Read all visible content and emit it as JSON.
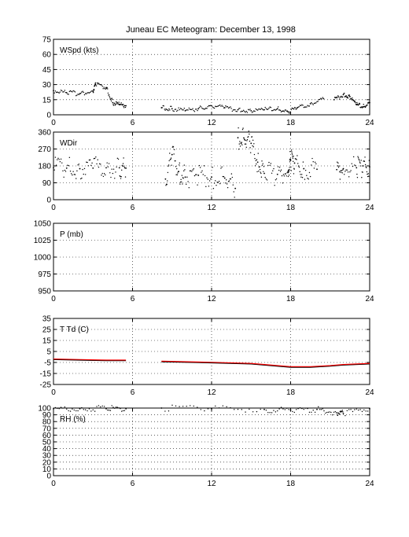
{
  "title": "Juneau EC Meteogram:  December 13, 1998",
  "chart_data": [
    {
      "type": "scatter",
      "label": "WSpd (kts)",
      "xlim": [
        0,
        24
      ],
      "xticks": [
        "0",
        "6",
        "12",
        "18",
        "24"
      ],
      "ylim": [
        0,
        75
      ],
      "yticks": [
        "0",
        "15",
        "30",
        "45",
        "60",
        "75"
      ],
      "grid": true,
      "series": [
        {
          "color": "#000000",
          "x": [
            0,
            1,
            2,
            3,
            3.2,
            4,
            4.5,
            5,
            5.5
          ],
          "y": [
            24,
            22,
            21,
            23,
            30,
            27,
            12,
            10,
            9
          ]
        },
        {
          "color": "#000000",
          "x": [
            8.2,
            9,
            10,
            11,
            12,
            13,
            14,
            15,
            16,
            17,
            17.8,
            18.5,
            19.5,
            20.5
          ],
          "y": [
            7,
            6,
            4,
            6,
            9,
            7,
            5,
            4,
            5,
            6,
            3,
            7,
            11,
            16
          ]
        },
        {
          "color": "#000000",
          "x": [
            21.3,
            22,
            22.5,
            23,
            23.5,
            24
          ],
          "y": [
            15,
            20,
            18,
            10,
            8,
            12
          ]
        }
      ]
    },
    {
      "type": "scatter",
      "label": "WDir",
      "xlim": [
        0,
        24
      ],
      "xticks": [
        "0",
        "6",
        "12",
        "18",
        "24"
      ],
      "ylim": [
        0,
        360
      ],
      "yticks": [
        "0",
        "90",
        "180",
        "270",
        "360"
      ],
      "grid": true,
      "series": [
        {
          "color": "#000000",
          "x": [
            0,
            1,
            2,
            3,
            4,
            5,
            5.5
          ],
          "y": [
            170,
            168,
            165,
            168,
            170,
            170,
            168
          ]
        },
        {
          "color": "#000000",
          "x": [
            8.5,
            9,
            9.5,
            10,
            11,
            12,
            13,
            13.8
          ],
          "y": [
            110,
            240,
            150,
            120,
            130,
            120,
            115,
            60
          ]
        },
        {
          "color": "#000000",
          "x": [
            14,
            14.5,
            15,
            15.5,
            16,
            17,
            17.8,
            18,
            18.3,
            19,
            20
          ],
          "y": [
            330,
            320,
            300,
            200,
            140,
            135,
            150,
            210,
            195,
            165,
            162
          ]
        },
        {
          "color": "#000000",
          "x": [
            21.5,
            22,
            23,
            23.5,
            24
          ],
          "y": [
            160,
            165,
            170,
            180,
            175
          ]
        }
      ]
    },
    {
      "type": "line",
      "label": "P (mb)",
      "xlim": [
        0,
        24
      ],
      "xticks": [
        "0",
        "6",
        "12",
        "18",
        "24"
      ],
      "ylim": [
        950,
        1050
      ],
      "yticks": [
        "950",
        "975",
        "1000",
        "1025",
        "1050"
      ],
      "grid": true,
      "series": []
    },
    {
      "type": "line",
      "label": "T Td (C)",
      "xlim": [
        0,
        24
      ],
      "xticks": [
        "0",
        "6",
        "12",
        "18",
        "24"
      ],
      "ylim": [
        -25,
        35
      ],
      "yticks": [
        "-25",
        "-15",
        "-5",
        "5",
        "15",
        "25",
        "35"
      ],
      "grid": true,
      "series": [
        {
          "color": "#ff0000",
          "x": [
            0,
            2,
            4,
            5.5
          ],
          "y": [
            -2,
            -2.5,
            -3,
            -3
          ]
        },
        {
          "color": "#ff0000",
          "x": [
            8.2,
            12,
            15,
            18,
            19.5,
            21,
            22,
            24
          ],
          "y": [
            -4,
            -5,
            -6,
            -9,
            -9,
            -8,
            -7,
            -6
          ]
        },
        {
          "color": "#000000",
          "x": [
            0,
            2,
            4,
            5.5
          ],
          "y": [
            -2.5,
            -3,
            -3.5,
            -3.5
          ]
        },
        {
          "color": "#000000",
          "x": [
            8.2,
            12,
            15,
            18,
            19.5,
            21,
            22,
            24
          ],
          "y": [
            -4.5,
            -5.5,
            -6.5,
            -9.5,
            -9.5,
            -8.5,
            -7.5,
            -6.5
          ]
        }
      ]
    },
    {
      "type": "scatter",
      "label": "RH (%)",
      "xlim": [
        0,
        24
      ],
      "xticks": [
        "0",
        "6",
        "12",
        "18",
        "24"
      ],
      "ylim": [
        0,
        100
      ],
      "yticks": [
        "0",
        "10",
        "20",
        "30",
        "40",
        "50",
        "60",
        "70",
        "80",
        "90",
        "100"
      ],
      "grid": true,
      "series": [
        {
          "color": "#000000",
          "x": [
            0,
            2,
            4,
            5.5
          ],
          "y": [
            99,
            99,
            99,
            99
          ]
        },
        {
          "color": "#000000",
          "x": [
            8.2,
            12,
            16,
            18,
            20,
            21.5,
            22,
            24
          ],
          "y": [
            100,
            99,
            98,
            97,
            98,
            93,
            92,
            99
          ]
        }
      ]
    }
  ]
}
